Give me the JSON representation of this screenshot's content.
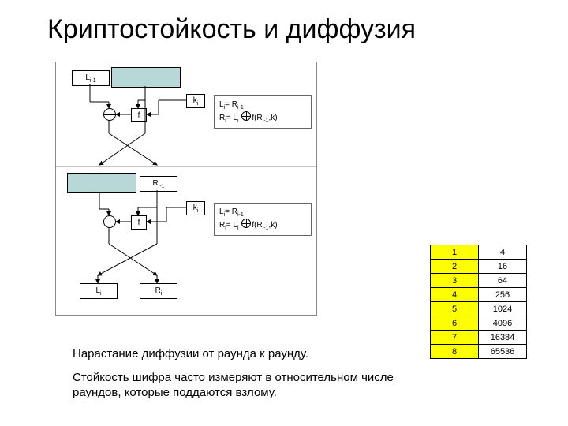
{
  "title": "Криптостойкость и диффузия",
  "diagram": {
    "labels": {
      "Lim1": "L",
      "Rim1": "R",
      "ki": "k",
      "f": "f",
      "Li": "L",
      "Ri": "R"
    },
    "formula": {
      "line1a": "L",
      "line1b": "=   R",
      "line2a": "R",
      "line2b": "=   L",
      "line2c": "f(R",
      "line2d": ",k)"
    }
  },
  "text1": "Нарастание диффузии от раунда к раунду.",
  "text2": "Стойкость шифра часто измеряют в относительном числе раундов, которые поддаются взлому.",
  "table": {
    "rows": [
      [
        "1",
        "4"
      ],
      [
        "2",
        "16"
      ],
      [
        "3",
        "64"
      ],
      [
        "4",
        "256"
      ],
      [
        "5",
        "1024"
      ],
      [
        "6",
        "4096"
      ],
      [
        "7",
        "16384"
      ],
      [
        "8",
        "65536"
      ]
    ],
    "col0_bg": "#ffff00",
    "col1_bg": "#ffffff",
    "border_color": "#000000"
  }
}
